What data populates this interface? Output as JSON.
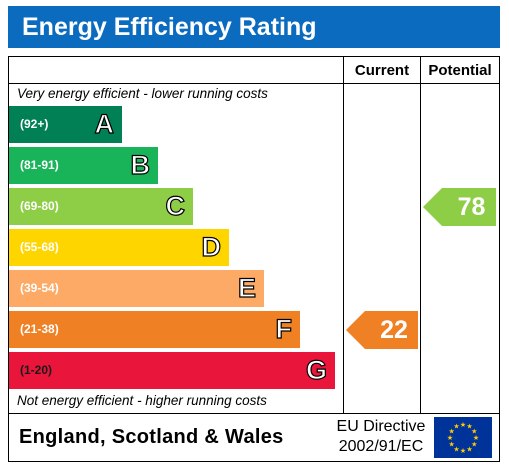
{
  "title": "Energy Efficiency Rating",
  "header": {
    "current": "Current",
    "potential": "Potential"
  },
  "notes": {
    "top": "Very energy efficient - lower running costs",
    "bottom": "Not energy efficient - higher running costs"
  },
  "footer": {
    "region": "England, Scotland & Wales",
    "directive_line1": "EU Directive",
    "directive_line2": "2002/91/EC",
    "flag": "eu-flag-icon"
  },
  "chart_data": {
    "type": "bar",
    "title": "Energy Efficiency Rating",
    "bands": [
      {
        "letter": "A",
        "range": "(92+)",
        "color": "#008054"
      },
      {
        "letter": "B",
        "range": "(81-91)",
        "color": "#19b459"
      },
      {
        "letter": "C",
        "range": "(69-80)",
        "color": "#8dce46"
      },
      {
        "letter": "D",
        "range": "(55-68)",
        "color": "#ffd500"
      },
      {
        "letter": "E",
        "range": "(39-54)",
        "color": "#fcaa65"
      },
      {
        "letter": "F",
        "range": "(21-38)",
        "color": "#ef8023"
      },
      {
        "letter": "G",
        "range": "(1-20)",
        "color": "#e9153b"
      }
    ],
    "current": {
      "value": 22,
      "band": "F",
      "color": "#ef8023"
    },
    "potential": {
      "value": 78,
      "band": "C",
      "color": "#8dce46"
    }
  }
}
